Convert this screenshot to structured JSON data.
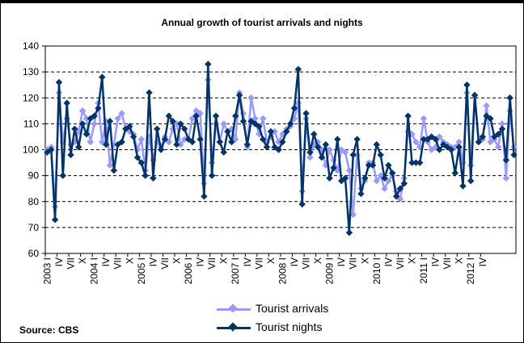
{
  "chart_data": {
    "type": "line",
    "title": "Annual growth of tourist arrivals and nights",
    "source": "Source: CBS",
    "ylim": [
      60,
      140
    ],
    "yticks": [
      60,
      70,
      80,
      90,
      100,
      110,
      120,
      130,
      140
    ],
    "grid": "horizontal dashed",
    "legend_position": "bottom-center",
    "x_tick_labels": [
      "2003 I",
      "IV",
      "VII",
      "X",
      "2004 I",
      "IV",
      "VII",
      "X",
      "2005 I",
      "IV",
      "VII",
      "X",
      "2006 I",
      "IV",
      "VII",
      "X",
      "2007 I",
      "IV",
      "VII",
      "X",
      "2008 I",
      "IV",
      "VII",
      "X",
      "2009 I",
      "IV",
      "VII",
      "X",
      "2010 I",
      "IV",
      "VII",
      "X",
      "2011 I",
      "IV",
      "VII",
      "X",
      "2012 I",
      "IV"
    ],
    "series": [
      {
        "name": "Tourist arrivals",
        "color": "#9999ff",
        "values": [
          100,
          101,
          78,
          122,
          103,
          112,
          102,
          103,
          107,
          115,
          112,
          103,
          110,
          118,
          103,
          111,
          94,
          102,
          112,
          114,
          108,
          107,
          106,
          100,
          104,
          92,
          105,
          96,
          103,
          101,
          105,
          103,
          108,
          110,
          102,
          104,
          104,
          112,
          115,
          114,
          87,
          127,
          95,
          110,
          103,
          110,
          107,
          108,
          104,
          122,
          114,
          101,
          120,
          112,
          106,
          112,
          103,
          105,
          107,
          103,
          106,
          108,
          109,
          112,
          118,
          84,
          112,
          97,
          102,
          103,
          100,
          94,
          100,
          96,
          92,
          100,
          99,
          92,
          75,
          98,
          85,
          88,
          95,
          95,
          88,
          90,
          85,
          88,
          90,
          84,
          81,
          89,
          107,
          106,
          103,
          101,
          112,
          103,
          100,
          101,
          105,
          103,
          102,
          101,
          101,
          103,
          95,
          122,
          94,
          121,
          103,
          104,
          117,
          103,
          104,
          101,
          110,
          89,
          115,
          101
        ]
      },
      {
        "name": "Tourist nights",
        "color": "#003366",
        "values": [
          99,
          100,
          73,
          126,
          90,
          118,
          98,
          108,
          101,
          110,
          106,
          112,
          113,
          116,
          128,
          102,
          111,
          92,
          102,
          103,
          108,
          109,
          105,
          97,
          95,
          90,
          122,
          89,
          108,
          100,
          104,
          113,
          111,
          102,
          110,
          108,
          104,
          103,
          113,
          104,
          82,
          133,
          90,
          113,
          103,
          99,
          107,
          103,
          113,
          121,
          111,
          102,
          111,
          110,
          109,
          104,
          101,
          107,
          101,
          100,
          103,
          107,
          110,
          116,
          131,
          79,
          114,
          99,
          106,
          101,
          97,
          102,
          89,
          93,
          104,
          88,
          89,
          68,
          98,
          104,
          83,
          89,
          94,
          94,
          102,
          98,
          89,
          94,
          91,
          82,
          85,
          87,
          113,
          95,
          95,
          95,
          104,
          104,
          105,
          104,
          100,
          102,
          101,
          100,
          91,
          101,
          86,
          125,
          88,
          121,
          103,
          105,
          113,
          112,
          105,
          106,
          108,
          96,
          120,
          98
        ]
      }
    ]
  }
}
